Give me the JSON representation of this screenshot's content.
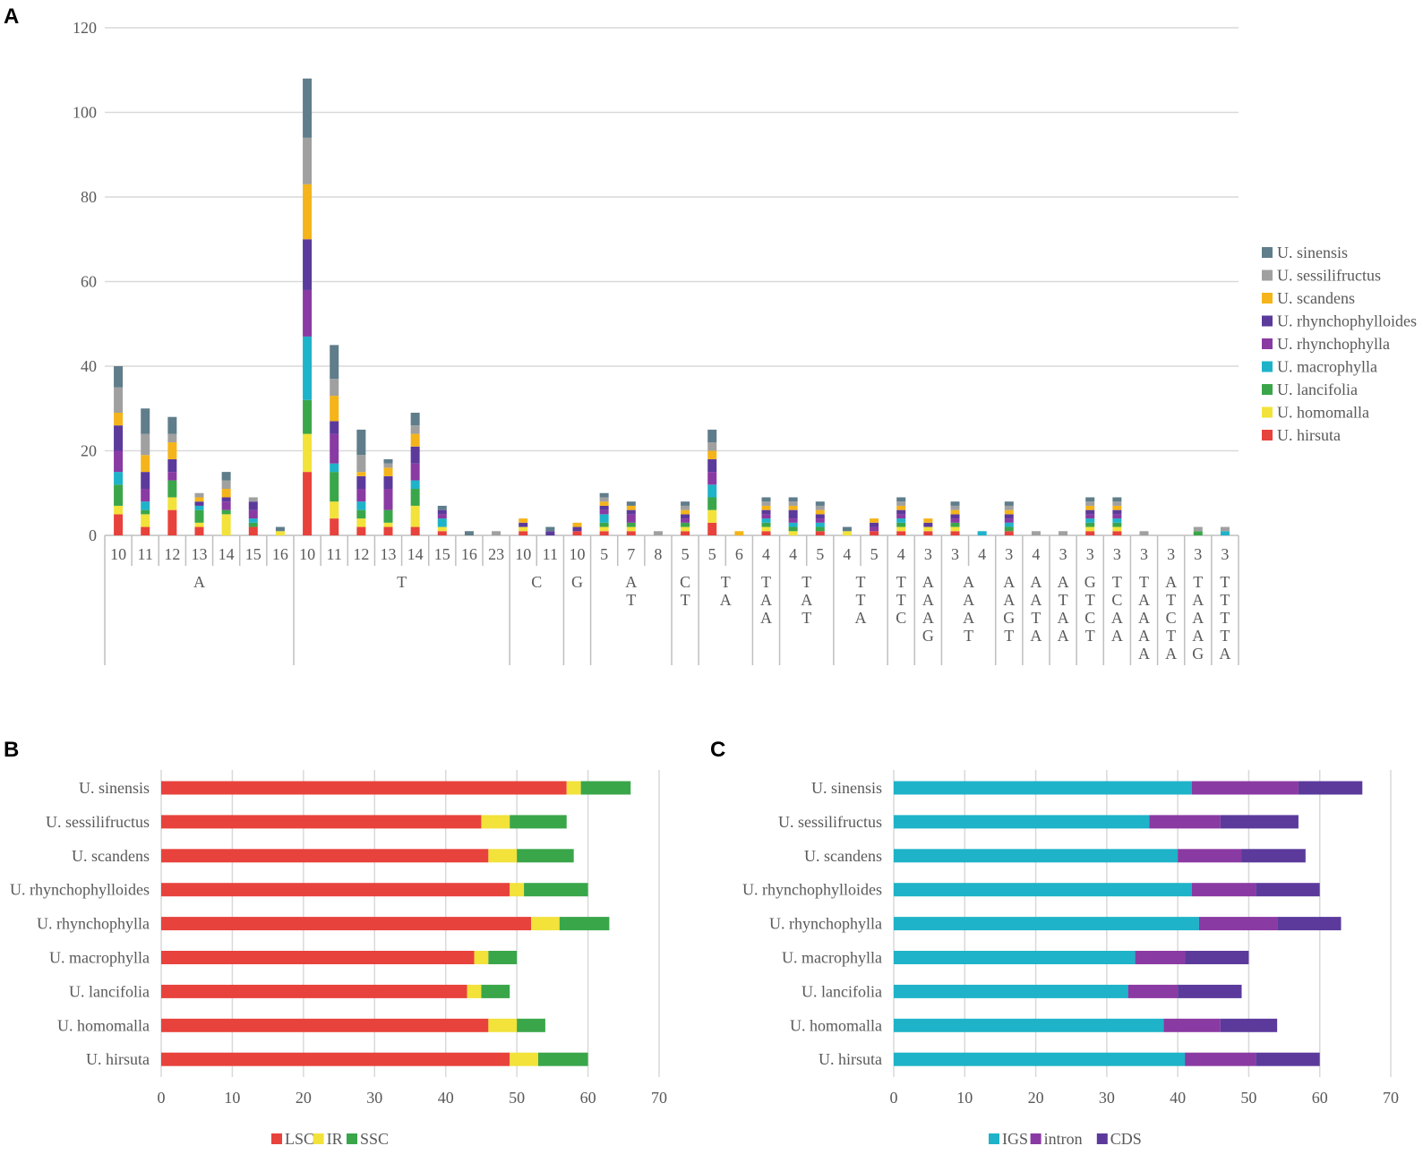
{
  "panels": [
    "A",
    "B",
    "C"
  ],
  "colors": {
    "sinensis": "#5f7d8a",
    "sessilifructus": "#a0a0a0",
    "scandens": "#f4b41a",
    "rhynchophylloides": "#5b3a9c",
    "rhynchophylla": "#8a3aa3",
    "macrophylla": "#1eb3c8",
    "lancifolia": "#3aa64a",
    "homomalla": "#f2e23a",
    "hirsuta": "#e8423c",
    "LSC": "#e8423c",
    "IR": "#f2e23a",
    "SSC": "#3aa64a",
    "IGS": "#1eb3c8",
    "intron": "#8a3aa3",
    "CDS": "#5b3a9c"
  },
  "chart_data": [
    {
      "id": "A",
      "type": "bar",
      "stacked": true,
      "ylim": [
        0,
        120
      ],
      "yticks": [
        0,
        20,
        40,
        60,
        80,
        100,
        120
      ],
      "categories": [
        "10",
        "11",
        "12",
        "13",
        "14",
        "15",
        "16",
        "10",
        "11",
        "12",
        "13",
        "14",
        "15",
        "16",
        "23",
        "10",
        "11",
        "10",
        "5",
        "7",
        "8",
        "5",
        "5",
        "6",
        "4",
        "4",
        "5",
        "4",
        "5",
        "4",
        "3",
        "3",
        "4",
        "3",
        "4",
        "3",
        "3",
        "3",
        "3",
        "3",
        "3",
        "3"
      ],
      "groups": [
        {
          "label": "A",
          "count": 7
        },
        {
          "label": "T",
          "count": 8
        },
        {
          "label": "C",
          "count": 2
        },
        {
          "label": "G",
          "count": 1
        },
        {
          "label": "AT",
          "count": 3
        },
        {
          "label": "CT",
          "count": 1
        },
        {
          "label": "TA",
          "count": 2
        },
        {
          "label": "TAA",
          "count": 1
        },
        {
          "label": "TAT",
          "count": 2
        },
        {
          "label": "TTA",
          "count": 2
        },
        {
          "label": "TTC",
          "count": 1
        },
        {
          "label": "AAAG",
          "count": 1
        },
        {
          "label": "AAAT",
          "count": 2
        },
        {
          "label": "AAGT",
          "count": 1
        },
        {
          "label": "AATA",
          "count": 1
        },
        {
          "label": "ATAA",
          "count": 1
        },
        {
          "label": "GTCT",
          "count": 1
        },
        {
          "label": "TCAA",
          "count": 1
        },
        {
          "label": "TAAAA",
          "count": 1
        },
        {
          "label": "ATCTA",
          "count": 1
        },
        {
          "label": "TAAAG",
          "count": 1
        },
        {
          "label": "TTTTA",
          "count": 1
        }
      ],
      "series": [
        {
          "name": "U. hirsuta",
          "key": "hirsuta",
          "values": [
            5,
            2,
            6,
            2,
            0,
            2,
            0,
            15,
            4,
            2,
            2,
            2,
            1,
            0,
            0,
            1,
            0,
            1,
            1,
            1,
            0,
            1,
            3,
            0,
            1,
            0,
            1,
            0,
            1,
            1,
            1,
            1,
            0,
            1,
            0,
            0,
            1,
            1,
            0,
            0,
            0,
            0
          ]
        },
        {
          "name": "U. homomalla",
          "key": "homomalla",
          "values": [
            2,
            3,
            3,
            1,
            5,
            0,
            1,
            9,
            4,
            2,
            1,
            5,
            1,
            0,
            0,
            1,
            0,
            0,
            1,
            1,
            0,
            1,
            3,
            0,
            1,
            1,
            0,
            1,
            0,
            1,
            1,
            1,
            0,
            0,
            0,
            0,
            1,
            1,
            0,
            0,
            0,
            0
          ]
        },
        {
          "name": "U. lancifolia",
          "key": "lancifolia",
          "values": [
            5,
            1,
            4,
            3,
            1,
            1,
            0,
            8,
            7,
            2,
            3,
            4,
            0,
            0,
            0,
            0,
            0,
            0,
            1,
            1,
            0,
            1,
            3,
            0,
            1,
            1,
            1,
            0,
            0,
            1,
            0,
            1,
            0,
            1,
            0,
            0,
            1,
            1,
            0,
            0,
            1,
            0
          ]
        },
        {
          "name": "U. macrophylla",
          "key": "macrophylla",
          "values": [
            3,
            2,
            0,
            1,
            0,
            1,
            0,
            15,
            2,
            2,
            0,
            2,
            2,
            0,
            0,
            0,
            0,
            0,
            2,
            0,
            0,
            0,
            3,
            0,
            1,
            1,
            1,
            0,
            0,
            1,
            0,
            0,
            1,
            1,
            0,
            0,
            1,
            1,
            0,
            0,
            0,
            1
          ]
        },
        {
          "name": "U. rhynchophylla",
          "key": "rhynchophylla",
          "values": [
            5,
            3,
            2,
            0,
            2,
            2,
            0,
            11,
            7,
            3,
            5,
            4,
            1,
            0,
            0,
            0,
            0,
            0,
            1,
            2,
            0,
            1,
            3,
            0,
            1,
            1,
            1,
            0,
            1,
            1,
            0,
            1,
            0,
            1,
            0,
            0,
            1,
            1,
            0,
            0,
            0,
            0
          ]
        },
        {
          "name": "U. rhynchophylloides",
          "key": "rhynchophylloides",
          "values": [
            6,
            4,
            3,
            1,
            1,
            2,
            0,
            12,
            3,
            3,
            3,
            4,
            1,
            0,
            0,
            1,
            1,
            1,
            1,
            1,
            0,
            1,
            3,
            0,
            1,
            2,
            1,
            0,
            1,
            1,
            1,
            1,
            0,
            1,
            0,
            0,
            1,
            1,
            0,
            0,
            0,
            0
          ]
        },
        {
          "name": "U. scandens",
          "key": "scandens",
          "values": [
            3,
            4,
            4,
            1,
            2,
            0,
            0,
            13,
            6,
            1,
            2,
            3,
            0,
            0,
            0,
            1,
            0,
            1,
            1,
            1,
            0,
            1,
            2,
            1,
            1,
            1,
            1,
            0,
            1,
            1,
            1,
            1,
            0,
            1,
            0,
            0,
            1,
            1,
            0,
            0,
            0,
            0
          ]
        },
        {
          "name": "U. sessilifructus",
          "key": "sessilifructus",
          "values": [
            6,
            5,
            2,
            1,
            2,
            1,
            0,
            11,
            4,
            4,
            1,
            2,
            0,
            0,
            1,
            0,
            0,
            0,
            1,
            0,
            1,
            1,
            2,
            0,
            1,
            1,
            1,
            0,
            0,
            1,
            0,
            1,
            0,
            1,
            1,
            1,
            1,
            1,
            1,
            0,
            1,
            1
          ]
        },
        {
          "name": "U. sinensis",
          "key": "sinensis",
          "values": [
            5,
            6,
            4,
            0,
            2,
            0,
            1,
            14,
            8,
            6,
            1,
            3,
            1,
            1,
            0,
            0,
            1,
            0,
            1,
            1,
            0,
            1,
            3,
            0,
            1,
            1,
            1,
            1,
            0,
            1,
            0,
            1,
            0,
            1,
            0,
            0,
            1,
            1,
            0,
            0,
            0,
            0
          ]
        }
      ],
      "legend": [
        "U. sinensis",
        "U. sessilifructus",
        "U. scandens",
        "U. rhynchophylloides",
        "U. rhynchophylla",
        "U. macrophylla",
        "U. lancifolia",
        "U. homomalla",
        "U. hirsuta"
      ],
      "legend_position": "right"
    },
    {
      "id": "B",
      "type": "bar",
      "orientation": "horizontal",
      "stacked": true,
      "xlim": [
        0,
        70
      ],
      "xticks": [
        0,
        10,
        20,
        30,
        40,
        50,
        60,
        70
      ],
      "categories": [
        "U. sinensis",
        "U. sessilifructus",
        "U. scandens",
        "U. rhynchophylloides",
        "U. rhynchophylla",
        "U. macrophylla",
        "U. lancifolia",
        "U. homomalla",
        "U. hirsuta"
      ],
      "series": [
        {
          "name": "LSC",
          "key": "LSC",
          "values": [
            57,
            45,
            46,
            49,
            52,
            44,
            43,
            46,
            49
          ]
        },
        {
          "name": "IR",
          "key": "IR",
          "values": [
            2,
            4,
            4,
            2,
            4,
            2,
            2,
            4,
            4
          ]
        },
        {
          "name": "SSC",
          "key": "SSC",
          "values": [
            7,
            8,
            8,
            9,
            7,
            4,
            4,
            4,
            7
          ]
        }
      ],
      "legend": [
        "LSC",
        "IR",
        "SSC"
      ],
      "legend_position": "bottom"
    },
    {
      "id": "C",
      "type": "bar",
      "orientation": "horizontal",
      "stacked": true,
      "xlim": [
        0,
        70
      ],
      "xticks": [
        0,
        10,
        20,
        30,
        40,
        50,
        60,
        70
      ],
      "categories": [
        "U. sinensis",
        "U. sessilifructus",
        "U. scandens",
        "U. rhynchophylloides",
        "U. rhynchophylla",
        "U. macrophylla",
        "U. lancifolia",
        "U. homomalla",
        "U. hirsuta"
      ],
      "series": [
        {
          "name": "IGS",
          "key": "IGS",
          "values": [
            42,
            36,
            40,
            42,
            43,
            34,
            33,
            38,
            41
          ]
        },
        {
          "name": "intron",
          "key": "intron",
          "values": [
            15,
            10,
            9,
            9,
            11,
            7,
            7,
            8,
            10
          ]
        },
        {
          "name": "CDS",
          "key": "CDS",
          "values": [
            9,
            11,
            9,
            9,
            9,
            9,
            9,
            8,
            9
          ]
        }
      ],
      "legend": [
        "IGS",
        "intron",
        "CDS"
      ],
      "legend_position": "bottom"
    }
  ]
}
